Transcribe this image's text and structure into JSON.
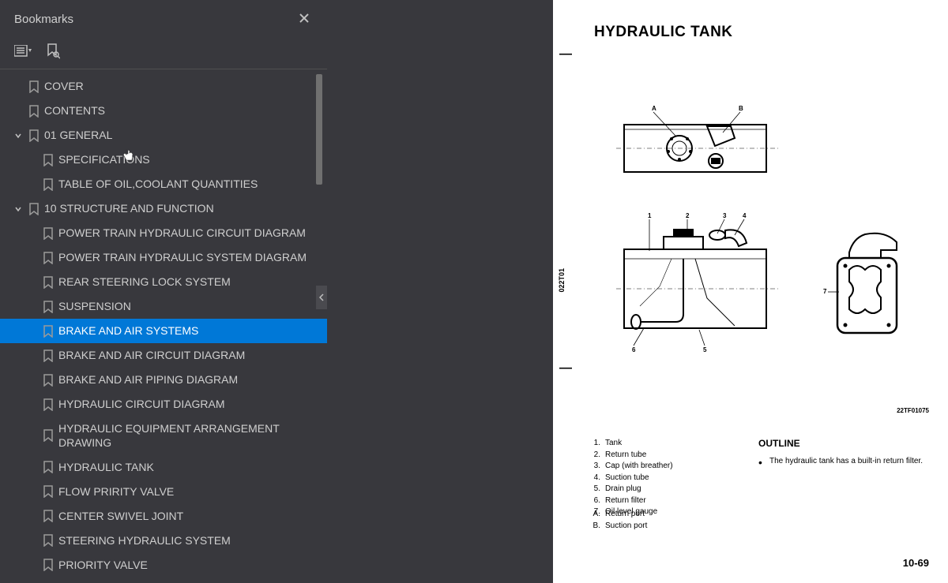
{
  "sidebar": {
    "title": "Bookmarks",
    "bookmarks": [
      {
        "level": 0,
        "chev": "",
        "label": "COVER"
      },
      {
        "level": 0,
        "chev": "",
        "label": "CONTENTS"
      },
      {
        "level": 0,
        "chev": "v",
        "label": "01 GENERAL"
      },
      {
        "level": 1,
        "chev": "",
        "label": "SPECIFICATIONS"
      },
      {
        "level": 1,
        "chev": "",
        "label": "TABLE OF OIL,COOLANT QUANTITIES"
      },
      {
        "level": 0,
        "chev": "v",
        "label": "10 STRUCTURE AND FUNCTION"
      },
      {
        "level": 1,
        "chev": "",
        "label": "POWER TRAIN HYDRAULIC CIRCUIT DIAGRAM"
      },
      {
        "level": 1,
        "chev": "",
        "label": "POWER TRAIN HYDRAULIC SYSTEM DIAGRAM"
      },
      {
        "level": 1,
        "chev": "",
        "label": "REAR STEERING LOCK SYSTEM"
      },
      {
        "level": 1,
        "chev": "",
        "label": "SUSPENSION"
      },
      {
        "level": 1,
        "chev": "",
        "label": "BRAKE AND AIR SYSTEMS",
        "selected": true
      },
      {
        "level": 1,
        "chev": "",
        "label": "BRAKE AND AIR CIRCUIT DIAGRAM"
      },
      {
        "level": 1,
        "chev": "",
        "label": "BRAKE AND AIR PIPING DIAGRAM"
      },
      {
        "level": 1,
        "chev": "",
        "label": "HYDRAULIC CIRCUIT DIAGRAM"
      },
      {
        "level": 1,
        "chev": "",
        "label": "HYDRAULIC EQUIPMENT ARRANGEMENT DRAWING"
      },
      {
        "level": 1,
        "chev": "",
        "label": "HYDRAULIC TANK"
      },
      {
        "level": 1,
        "chev": "",
        "label": "FLOW PRIRITY VALVE"
      },
      {
        "level": 1,
        "chev": "",
        "label": "CENTER SWIVEL JOINT"
      },
      {
        "level": 1,
        "chev": "",
        "label": "STEERING HYDRAULIC SYSTEM"
      },
      {
        "level": 1,
        "chev": "",
        "label": "PRIORITY VALVE"
      }
    ]
  },
  "page": {
    "title": "HYDRAULIC TANK",
    "side_label": "022T01",
    "ref_num": "22TF01075",
    "parts": [
      {
        "n": "1.",
        "t": "Tank"
      },
      {
        "n": "2.",
        "t": "Return tube"
      },
      {
        "n": "3.",
        "t": "Cap (with breather)"
      },
      {
        "n": "4.",
        "t": "Suction tube"
      },
      {
        "n": "5.",
        "t": "Drain plug"
      },
      {
        "n": "6.",
        "t": "Return filter"
      },
      {
        "n": "7.",
        "t": "Oil level gauge"
      }
    ],
    "ports": [
      {
        "n": "A.",
        "t": "Return port"
      },
      {
        "n": "B.",
        "t": "Suction port"
      }
    ],
    "outline_title": "OUTLINE",
    "outline_text": "The hydraulic tank has a built-in return filter.",
    "page_num": "10-69",
    "figure_labels": {
      "A": "A",
      "B": "B",
      "n1": "1",
      "n2": "2",
      "n3": "3",
      "n4": "4",
      "n5": "5",
      "n6": "6",
      "n7": "7"
    }
  },
  "colors": {
    "panel_bg": "#38383d",
    "selected_bg": "#0078d7",
    "text_light": "#cfcfcf",
    "page_bg": "#ffffff"
  }
}
